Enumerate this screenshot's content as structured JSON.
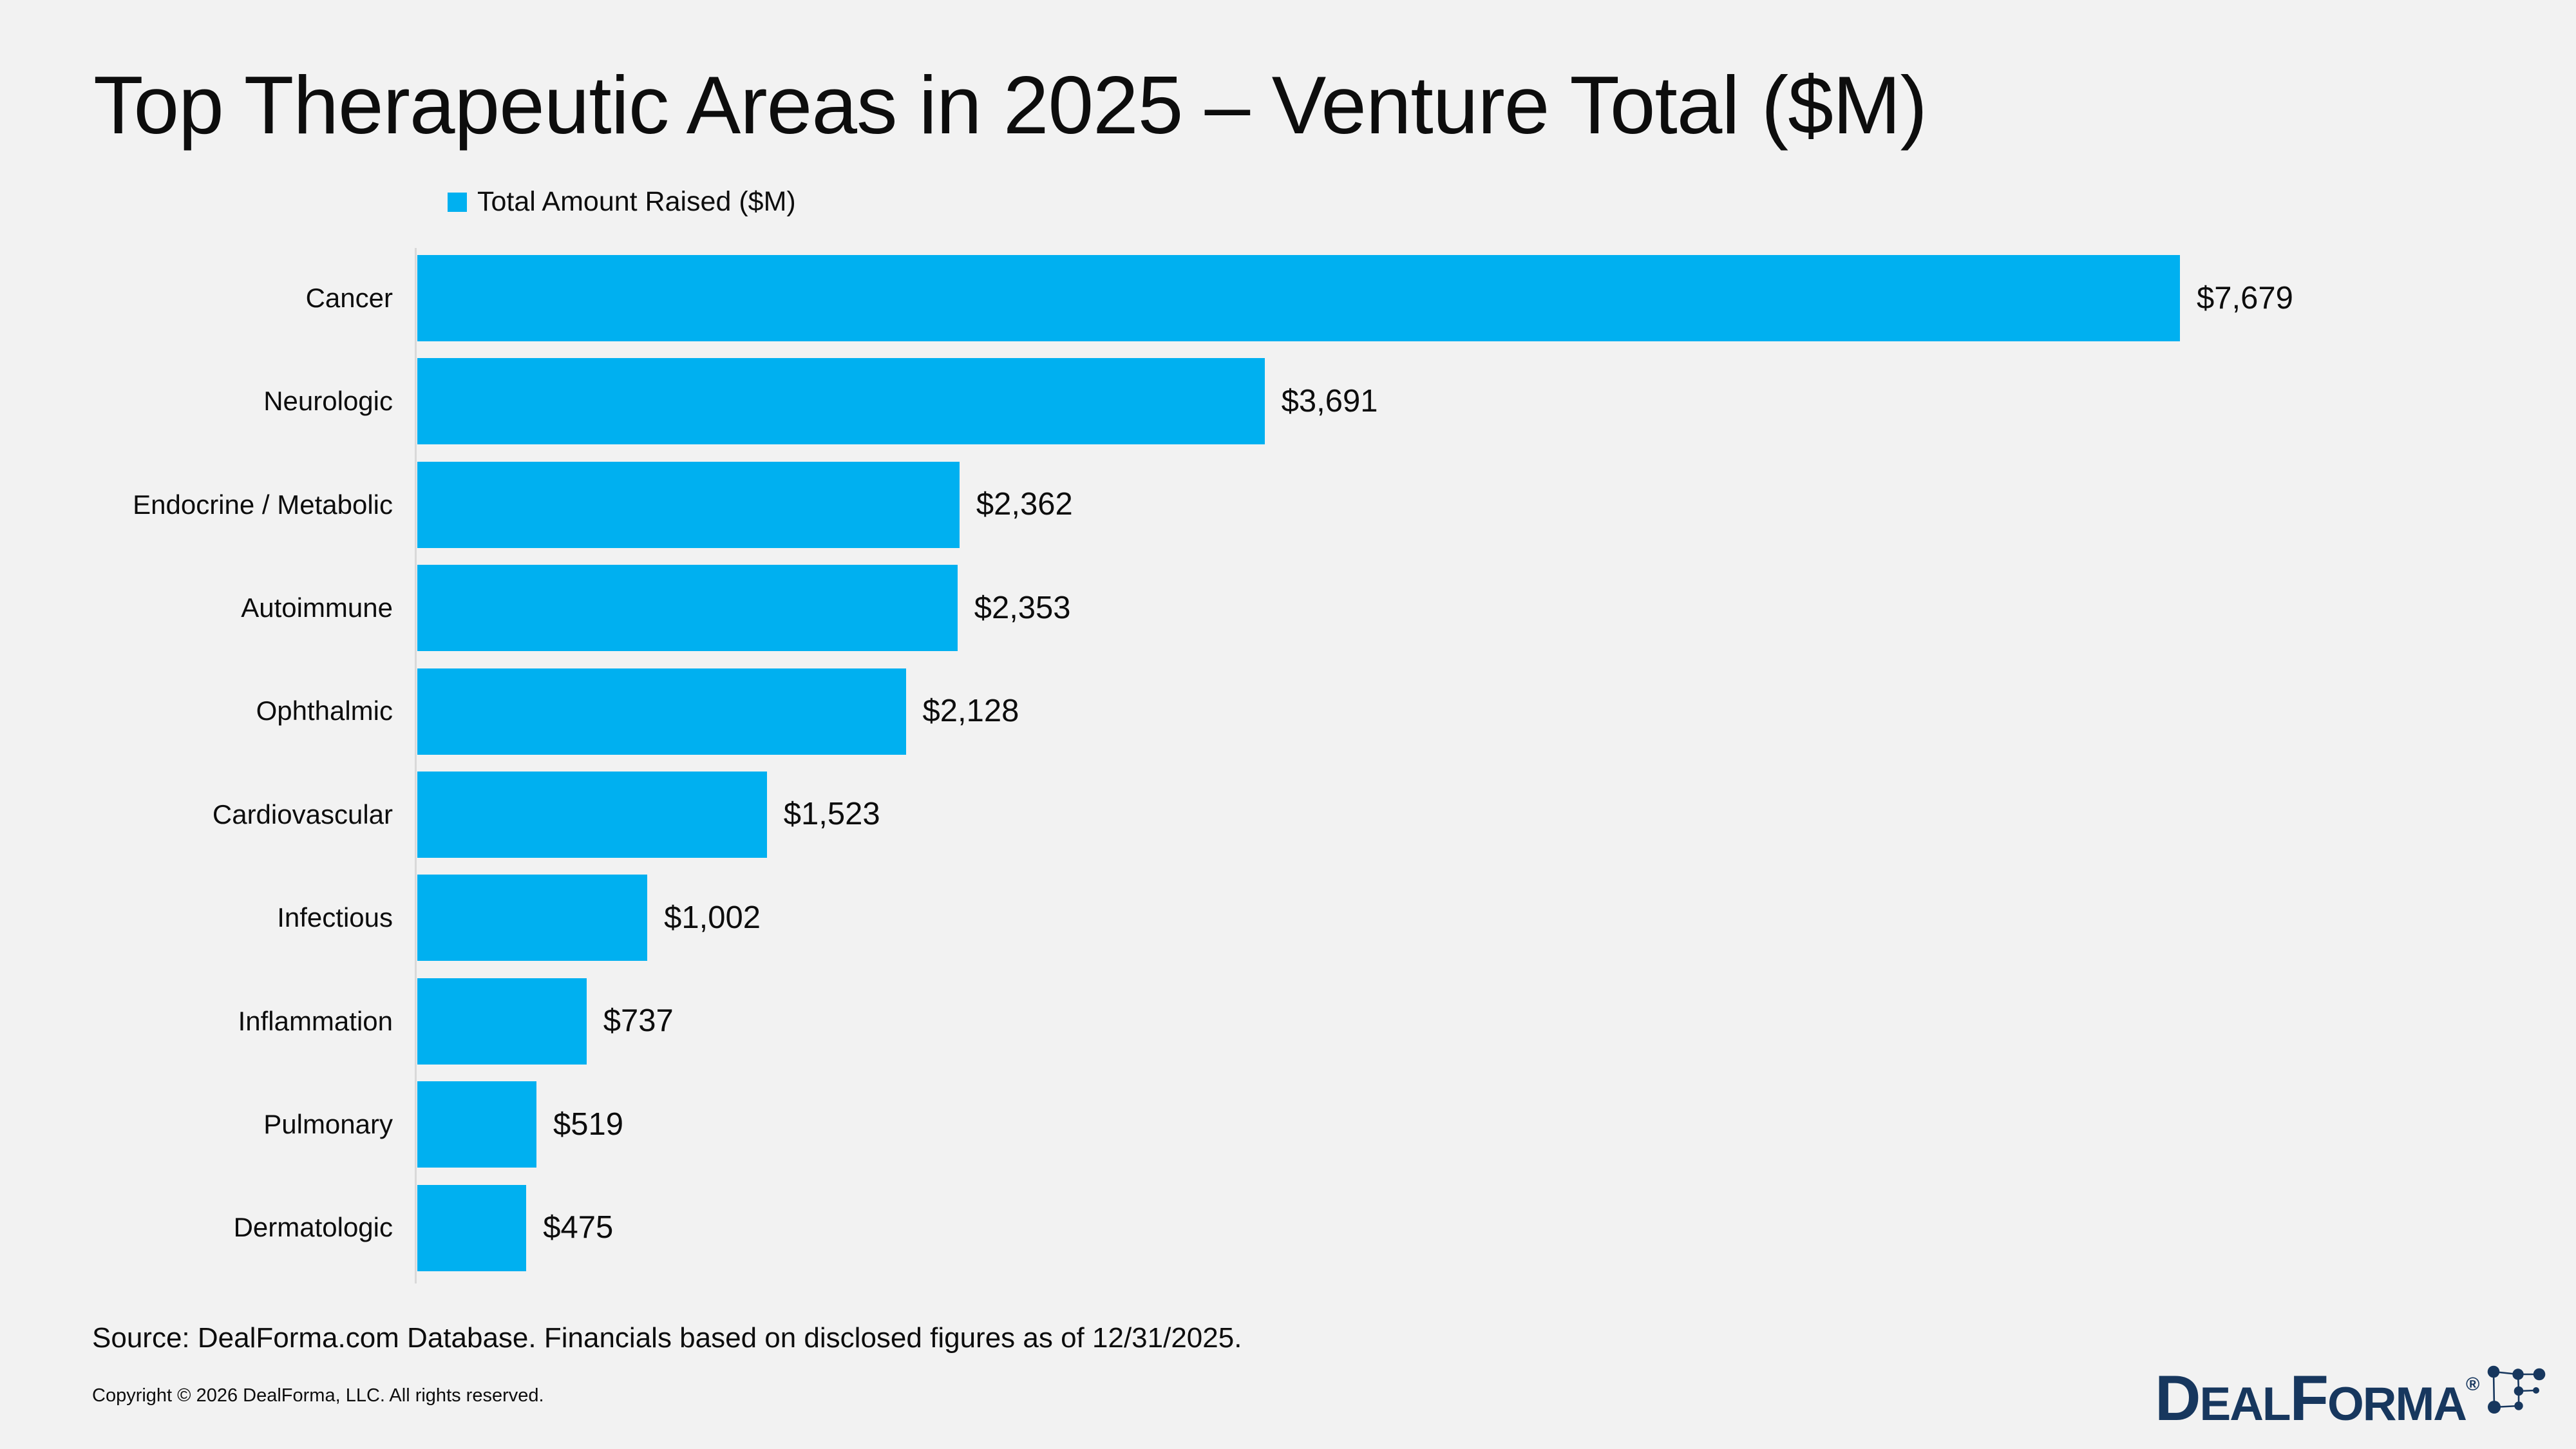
{
  "title": "Top Therapeutic Areas in 2025 – Venture Total ($M)",
  "legend": {
    "label": "Total Amount Raised ($M)"
  },
  "chart_data": {
    "type": "bar",
    "orientation": "horizontal",
    "title": "Top Therapeutic Areas in 2025 – Venture Total ($M)",
    "series_name": "Total Amount Raised ($M)",
    "categories": [
      "Cancer",
      "Neurologic",
      "Endocrine / Metabolic",
      "Autoimmune",
      "Ophthalmic",
      "Cardiovascular",
      "Infectious",
      "Inflammation",
      "Pulmonary",
      "Dermatologic"
    ],
    "values": [
      7679,
      3691,
      2362,
      2353,
      2128,
      1523,
      1002,
      737,
      519,
      475
    ],
    "value_labels": [
      "$7,679",
      "$3,691",
      "$2,362",
      "$2,353",
      "$2,128",
      "$1,523",
      "$1,002",
      "$737",
      "$519",
      "$475"
    ],
    "bar_color": "#00B0F0",
    "xlim": [
      0,
      8000
    ],
    "grid": false,
    "legend_position": "top-left",
    "value_label_position": "outside-end"
  },
  "footer": {
    "source": "Source: DealForma.com Database. Financials based on disclosed figures as of 12/31/2025.",
    "copyright": "Copyright © 2026 DealForma, LLC. All rights reserved."
  },
  "logo": {
    "wordmark": {
      "d": "D",
      "eal": "EAL",
      "f": "F",
      "orma": "ORMA",
      "registered": "®"
    }
  },
  "colors": {
    "background": "#F2F2F2",
    "bar": "#00B0F0",
    "axis_line": "#D9D9D9",
    "text": "#0D0D0D",
    "logo_navy": "#17375E"
  }
}
